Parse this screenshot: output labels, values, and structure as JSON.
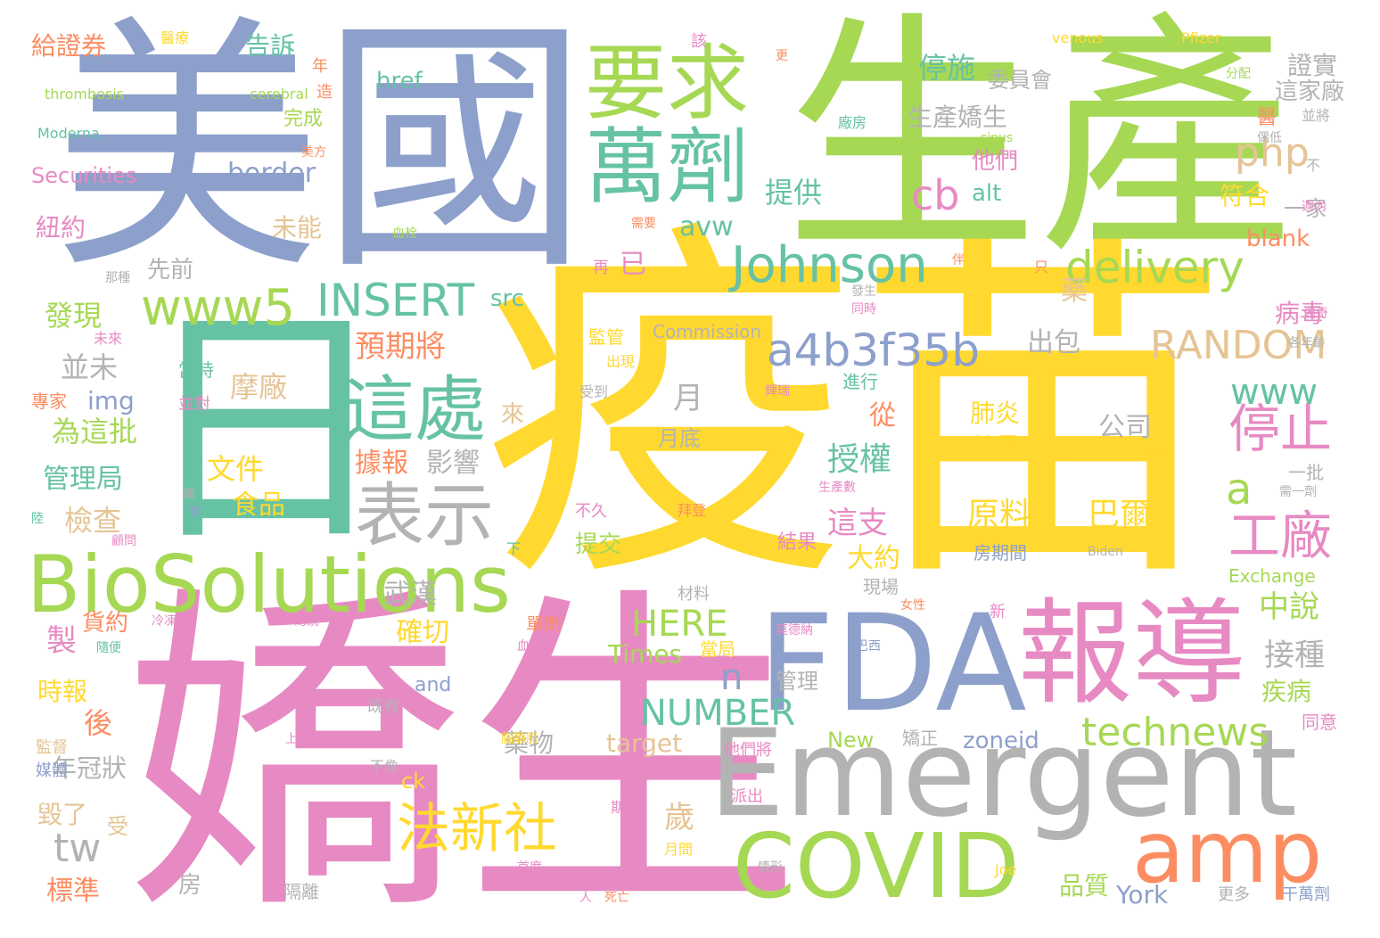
{
  "words": [
    {
      "text": "疫苗",
      "color": "yellow"
    },
    {
      "text": "美國",
      "color": "blue"
    },
    {
      "text": "生產",
      "color": "green"
    },
    {
      "text": "嬌生",
      "color": "pink"
    },
    {
      "text": "日",
      "color": "teal"
    },
    {
      "text": "Emergent",
      "color": "gray"
    },
    {
      "text": "FDA",
      "color": "blue"
    },
    {
      "text": "報導",
      "color": "pink"
    },
    {
      "text": "COVID",
      "color": "green"
    },
    {
      "text": "BioSolutions",
      "color": "green"
    },
    {
      "text": "amp",
      "color": "orange"
    },
    {
      "text": "要求",
      "color": "green"
    },
    {
      "text": "萬劑",
      "color": "teal"
    },
    {
      "text": "這處",
      "color": "teal"
    },
    {
      "text": "表示",
      "color": "gray"
    },
    {
      "text": "Johnson",
      "color": "teal"
    },
    {
      "text": "www5",
      "color": "green"
    },
    {
      "text": "a4b3f35b",
      "color": "blue"
    },
    {
      "text": "INSERT",
      "color": "teal"
    },
    {
      "text": "RANDOM",
      "color": "tan"
    },
    {
      "text": "delivery",
      "color": "green"
    },
    {
      "text": "technews",
      "color": "green"
    },
    {
      "text": "法新社",
      "color": "yellow"
    },
    {
      "text": "停止",
      "color": "pink"
    },
    {
      "text": "工廠",
      "color": "pink"
    },
    {
      "text": "php",
      "color": "tan"
    },
    {
      "text": "cb",
      "color": "pink"
    },
    {
      "text": "www",
      "color": "teal"
    },
    {
      "text": "HERE",
      "color": "green"
    },
    {
      "text": "NUMBER",
      "color": "teal"
    },
    {
      "text": "tw",
      "color": "gray"
    },
    {
      "text": "a",
      "color": "green"
    },
    {
      "text": "n",
      "color": "blue"
    },
    {
      "text": "原料",
      "color": "yellow"
    },
    {
      "text": "巴爾",
      "color": "yellow"
    },
    {
      "text": "肺炎",
      "color": "yellow"
    },
    {
      "text": "數量",
      "color": "yellow"
    },
    {
      "text": "公司",
      "color": "gray"
    },
    {
      "text": "文件",
      "color": "yellow"
    },
    {
      "text": "食品",
      "color": "yellow"
    },
    {
      "text": "摩廠",
      "color": "tan"
    },
    {
      "text": "授權",
      "color": "teal"
    },
    {
      "text": "提供",
      "color": "teal"
    },
    {
      "text": "停施",
      "color": "teal"
    },
    {
      "text": "生產嬌生",
      "color": "gray"
    },
    {
      "text": "預期將",
      "color": "orange"
    },
    {
      "text": "出包",
      "color": "gray"
    },
    {
      "text": "發現",
      "color": "green"
    },
    {
      "text": "並未",
      "color": "gray"
    },
    {
      "text": "為這批",
      "color": "green"
    },
    {
      "text": "管理局",
      "color": "teal"
    },
    {
      "text": "檢查",
      "color": "tan"
    },
    {
      "text": "影響",
      "color": "gray"
    },
    {
      "text": "據報",
      "color": "orange"
    },
    {
      "text": "這支",
      "color": "pink"
    },
    {
      "text": "大約",
      "color": "yellow"
    },
    {
      "text": "中說",
      "color": "green"
    },
    {
      "text": "接種",
      "color": "gray"
    },
    {
      "text": "疾病",
      "color": "green"
    },
    {
      "text": "病毒",
      "color": "pink"
    },
    {
      "text": "確切",
      "color": "yellow"
    },
    {
      "text": "武漢",
      "color": "gray"
    },
    {
      "text": "藥物",
      "color": "gray"
    },
    {
      "text": "管理",
      "color": "gray"
    },
    {
      "text": "品質",
      "color": "green"
    },
    {
      "text": "York",
      "color": "blue"
    },
    {
      "text": "zoneid",
      "color": "blue"
    },
    {
      "text": "target",
      "color": "tan"
    },
    {
      "text": "Times",
      "color": "green"
    },
    {
      "text": "New",
      "color": "green"
    },
    {
      "text": "border",
      "color": "blue"
    },
    {
      "text": "avw",
      "color": "teal"
    },
    {
      "text": "alt",
      "color": "teal"
    },
    {
      "text": "src",
      "color": "teal"
    },
    {
      "text": "img",
      "color": "blue"
    },
    {
      "text": "href",
      "color": "teal"
    },
    {
      "text": "blank",
      "color": "orange"
    },
    {
      "text": "ck",
      "color": "yellow"
    },
    {
      "text": "and",
      "color": "blue"
    },
    {
      "text": "時報",
      "color": "yellow"
    },
    {
      "text": "後",
      "color": "orange"
    },
    {
      "text": "年冠狀",
      "color": "gray"
    },
    {
      "text": "毀了",
      "color": "tan"
    },
    {
      "text": "標準",
      "color": "orange"
    },
    {
      "text": "受",
      "color": "tan"
    },
    {
      "text": "房",
      "color": "gray"
    },
    {
      "text": "歲",
      "color": "tan"
    },
    {
      "text": "廠",
      "color": "pink"
    },
    {
      "text": "月",
      "color": "gray"
    },
    {
      "text": "月底",
      "color": "gray"
    },
    {
      "text": "從",
      "color": "orange"
    },
    {
      "text": "來",
      "color": "tan"
    },
    {
      "text": "已",
      "color": "pink"
    },
    {
      "text": "藥",
      "color": "tan"
    },
    {
      "text": "他們",
      "color": "pink"
    },
    {
      "text": "符合",
      "color": "yellow"
    },
    {
      "text": "一家",
      "color": "gray"
    },
    {
      "text": "證實",
      "color": "gray"
    },
    {
      "text": "這家廠",
      "color": "gray"
    },
    {
      "text": "醫",
      "color": "orange"
    },
    {
      "text": "委員會",
      "color": "gray"
    },
    {
      "text": "告訴",
      "color": "teal"
    },
    {
      "text": "給證券",
      "color": "orange"
    },
    {
      "text": "Securities",
      "color": "pink"
    },
    {
      "text": "紐約",
      "color": "pink"
    },
    {
      "text": "未能",
      "color": "tan"
    },
    {
      "text": "先前",
      "color": "gray"
    },
    {
      "text": "完成",
      "color": "green"
    },
    {
      "text": "Moderna",
      "color": "teal"
    },
    {
      "text": "thrombosis",
      "color": "green"
    },
    {
      "text": "cerebral",
      "color": "green"
    },
    {
      "text": "醫療",
      "color": "yellow"
    },
    {
      "text": "venous",
      "color": "yellow"
    },
    {
      "text": "Pfizer",
      "color": "yellow"
    },
    {
      "text": "Commission",
      "color": "gray"
    },
    {
      "text": "Exchange",
      "color": "green"
    },
    {
      "text": "製",
      "color": "pink"
    },
    {
      "text": "貨約",
      "color": "orange"
    },
    {
      "text": "監管",
      "color": "yellow"
    },
    {
      "text": "提交",
      "color": "green"
    },
    {
      "text": "結果",
      "color": "pink"
    },
    {
      "text": "房期間",
      "color": "blue"
    },
    {
      "text": "現場",
      "color": "gray"
    },
    {
      "text": "一批",
      "color": "gray"
    },
    {
      "text": "當局",
      "color": "yellow"
    },
    {
      "text": "單劑",
      "color": "orange"
    },
    {
      "text": "期間",
      "color": "pink"
    },
    {
      "text": "月間",
      "color": "yellow"
    },
    {
      "text": "他們將",
      "color": "pink"
    },
    {
      "text": "派出",
      "color": "pink"
    },
    {
      "text": "矯正",
      "color": "gray"
    },
    {
      "text": "同意",
      "color": "pink"
    },
    {
      "text": "干萬劑",
      "color": "blue"
    },
    {
      "text": "更多",
      "color": "gray"
    },
    {
      "text": "當時",
      "color": "teal"
    },
    {
      "text": "並對",
      "color": "pink"
    },
    {
      "text": "專家",
      "color": "orange"
    },
    {
      "text": "材料",
      "color": "gray"
    },
    {
      "text": "隔離",
      "color": "gray"
    },
    {
      "text": "不像",
      "color": "gray"
    },
    {
      "text": "監督",
      "color": "tan"
    },
    {
      "text": "媒體",
      "color": "blue"
    },
    {
      "text": "新",
      "color": "pink"
    },
    {
      "text": "女性",
      "color": "orange"
    },
    {
      "text": "進行",
      "color": "teal"
    },
    {
      "text": "出現",
      "color": "yellow"
    },
    {
      "text": "受到",
      "color": "gray"
    },
    {
      "text": "不久",
      "color": "pink"
    },
    {
      "text": "拜登",
      "color": "orange"
    },
    {
      "text": "下",
      "color": "teal"
    },
    {
      "text": "Biden",
      "color": "gray"
    },
    {
      "text": "Joe",
      "color": "yellow"
    },
    {
      "text": "廠房",
      "color": "teal"
    },
    {
      "text": "並將",
      "color": "gray"
    },
    {
      "text": "分配",
      "color": "green"
    },
    {
      "text": "再",
      "color": "pink"
    },
    {
      "text": "只",
      "color": "orange"
    },
    {
      "text": "血栓",
      "color": "green"
    },
    {
      "text": "需要",
      "color": "orange"
    },
    {
      "text": "未來",
      "color": "pink"
    },
    {
      "text": "那種",
      "color": "gray"
    },
    {
      "text": "同時",
      "color": "pink"
    },
    {
      "text": "發生",
      "color": "gray"
    },
    {
      "text": "造",
      "color": "orange"
    },
    {
      "text": "年",
      "color": "orange"
    },
    {
      "text": "該",
      "color": "pink"
    },
    {
      "text": "更",
      "color": "orange"
    },
    {
      "text": "不",
      "color": "gray"
    },
    {
      "text": "美方",
      "color": "orange"
    },
    {
      "text": "週內",
      "color": "pink"
    },
    {
      "text": "輝瑞",
      "color": "pink"
    },
    {
      "text": "生產數",
      "color": "pink"
    },
    {
      "text": "因為",
      "color": "yellow"
    },
    {
      "text": "需一劑",
      "color": "gray"
    },
    {
      "text": "既有",
      "color": "gray"
    },
    {
      "text": "人",
      "color": "pink"
    },
    {
      "text": "死亡",
      "color": "orange"
    },
    {
      "text": "首席",
      "color": "pink"
    },
    {
      "text": "情形",
      "color": "gray"
    },
    {
      "text": "上來",
      "color": "pink"
    },
    {
      "text": "腦靜脈",
      "color": "yellow"
    },
    {
      "text": "血小板",
      "color": "pink"
    },
    {
      "text": "冷凍",
      "color": "pink"
    },
    {
      "text": "隨便",
      "color": "teal"
    },
    {
      "text": "總統",
      "color": "pink"
    },
    {
      "text": "莫德納",
      "color": "pink"
    },
    {
      "text": "巴西",
      "color": "blue"
    },
    {
      "text": "偶奇",
      "color": "pink"
    },
    {
      "text": "伴",
      "color": "orange"
    },
    {
      "text": "各年齡",
      "color": "gray"
    },
    {
      "text": "sinus",
      "color": "green"
    },
    {
      "text": "偶低",
      "color": "gray"
    },
    {
      "text": "嶼",
      "color": "gray"
    },
    {
      "text": "價",
      "color": "blue"
    },
    {
      "text": "顧問",
      "color": "pink"
    },
    {
      "text": "陸",
      "color": "teal"
    }
  ]
}
